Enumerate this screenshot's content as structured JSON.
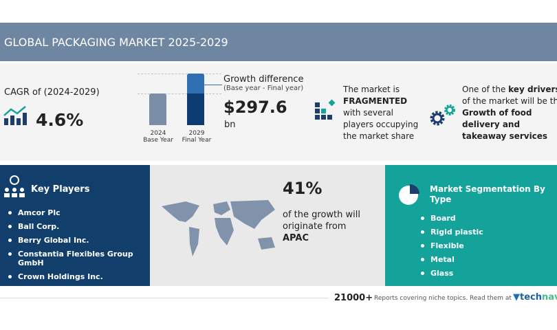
{
  "header": {
    "title": "GLOBAL PACKAGING MARKET 2025-2029"
  },
  "cagr": {
    "label": "CAGR of (2024-2029)",
    "value": "4.6%",
    "icon": "growth-chart-icon"
  },
  "growth": {
    "bar_base_label": "2024",
    "bar_base_sub": "Base Year",
    "bar_final_label": "2029",
    "bar_final_sub": "Final Year",
    "title": "Growth difference",
    "subtitle": "(Base year - Final year)",
    "value": "$297.6",
    "unit": "bn"
  },
  "fragmented": {
    "line1": "The market is",
    "bold": "FRAGMENTED",
    "line3": "with several",
    "line4": "players occupying",
    "line5": "the market share"
  },
  "drivers": {
    "pre": "One of the ",
    "bold1": "key drivers",
    "line2": "of the market will be the",
    "b2": "Growth of food",
    "b3": "delivery and",
    "b4": "takeaway services"
  },
  "key_players": {
    "title": "Key Players",
    "items": [
      "Amcor Plc",
      "Ball Corp.",
      "Berry Global Inc.",
      "Constantia Flexibles Group GmbH",
      "Crown Holdings Inc."
    ]
  },
  "region": {
    "percent": "41%",
    "line1": "of the growth will",
    "line2": "originate from",
    "region": "APAC"
  },
  "segmentation": {
    "title": "Market Segmentation By Type",
    "items": [
      "Board",
      "Rigid plastic",
      "Flexible",
      "Metal",
      "Glass"
    ]
  },
  "footer": {
    "count": "21000+",
    "text": "Reports covering niche topics. Read them at",
    "brand1": "tech",
    "brand2": "navio"
  },
  "colors": {
    "navy": "#123e6b",
    "teal": "#14a39a",
    "header": "#6f86a3"
  }
}
